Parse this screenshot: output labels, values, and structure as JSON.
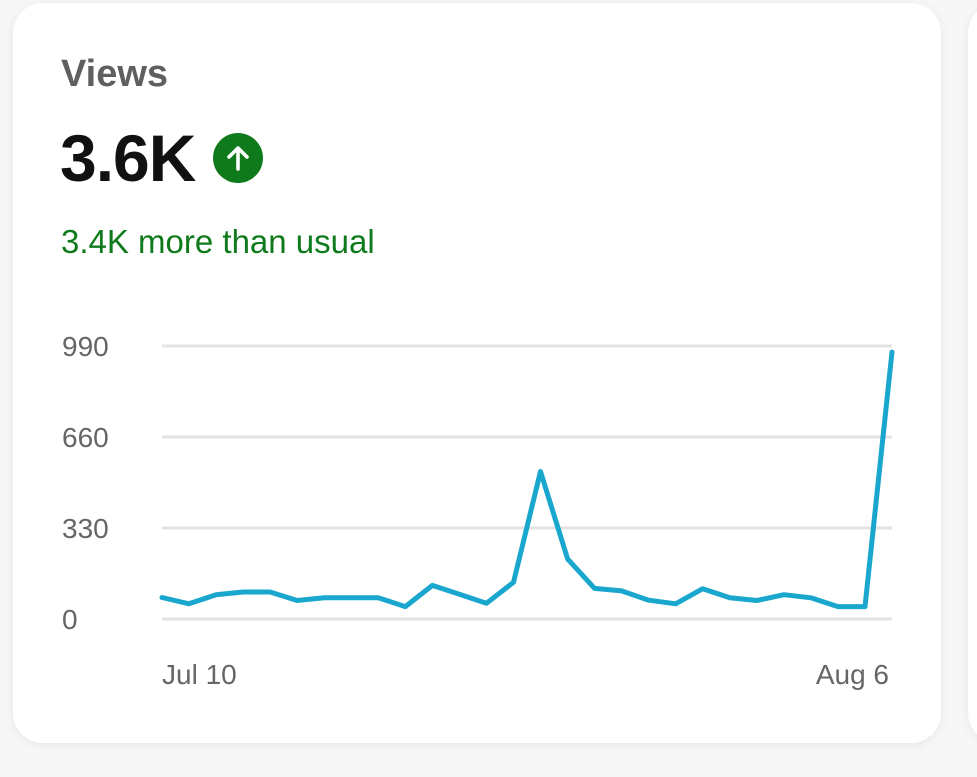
{
  "card": {
    "title": "Views",
    "value": "3.6K",
    "trend_icon": "arrow-up-icon",
    "delta_text": "3.4K more than usual"
  },
  "colors": {
    "line": "#19a7ce",
    "trend_icon_bg": "#0f7a1b",
    "delta_text": "#0f7a1b",
    "grid": "#e3e3e3"
  },
  "chart_data": {
    "type": "line",
    "title": "",
    "xlabel": "",
    "ylabel": "",
    "ylim": [
      0,
      990
    ],
    "yticks": [
      0,
      330,
      660,
      990
    ],
    "x_tick_labels": [
      "Jul 10",
      "Aug 6"
    ],
    "x": [
      "Jul 10",
      "Jul 11",
      "Jul 12",
      "Jul 13",
      "Jul 14",
      "Jul 15",
      "Jul 16",
      "Jul 17",
      "Jul 18",
      "Jul 19",
      "Jul 20",
      "Jul 21",
      "Jul 22",
      "Jul 23",
      "Jul 24",
      "Jul 25",
      "Jul 26",
      "Jul 27",
      "Jul 28",
      "Jul 29",
      "Jul 30",
      "Jul 31",
      "Aug 1",
      "Aug 2",
      "Aug 3",
      "Aug 4",
      "Aug 5",
      "Aug 6"
    ],
    "values": [
      78,
      55,
      88,
      98,
      98,
      67,
      77,
      77,
      77,
      45,
      122,
      90,
      57,
      133,
      535,
      218,
      111,
      102,
      68,
      55,
      110,
      77,
      67,
      88,
      77,
      45,
      45,
      968
    ],
    "grid": true,
    "legend": "none"
  }
}
